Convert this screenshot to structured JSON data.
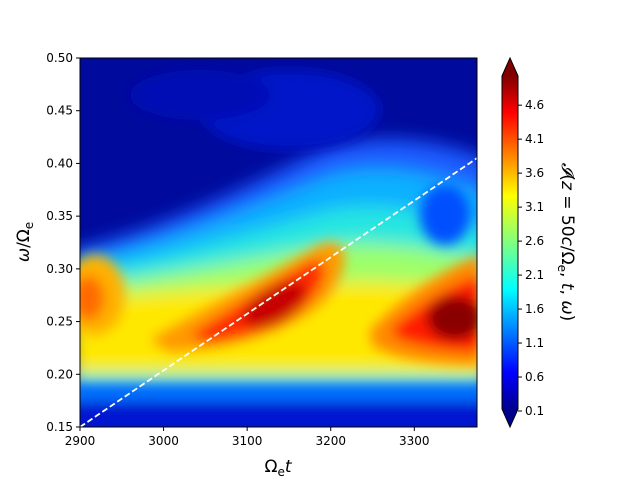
{
  "chart_data": {
    "type": "heatmap",
    "title": "",
    "xlabel": "Ω_e t",
    "ylabel": "ω/Ω_e",
    "colorbar_label": "𝓘(z = 50c/Ω_e, t, ω)",
    "xlim": [
      2900,
      3375
    ],
    "ylim": [
      0.15,
      0.5
    ],
    "x_ticks": [
      2900,
      3000,
      3100,
      3200,
      3300
    ],
    "y_ticks": [
      "0.15",
      "0.20",
      "0.25",
      "0.30",
      "0.35",
      "0.40",
      "0.45",
      "0.50"
    ],
    "colorbar_ticks": [
      "0.1",
      "0.6",
      "1.1",
      "1.6",
      "2.1",
      "2.6",
      "3.1",
      "3.6",
      "4.1",
      "4.6"
    ],
    "colorbar_range": [
      0.1,
      5.0
    ],
    "colormap": "jet",
    "extend": "both",
    "features": [
      {
        "x": 2900,
        "y": 0.27,
        "value": 3.7
      },
      {
        "x": 3140,
        "y": 0.27,
        "value": 4.6
      },
      {
        "x": 3360,
        "y": 0.255,
        "value": 5.0
      }
    ],
    "reference_line": {
      "style": "dashed",
      "color": "#ffffff",
      "x": [
        2900,
        3375
      ],
      "y": [
        0.15,
        0.405
      ]
    }
  }
}
